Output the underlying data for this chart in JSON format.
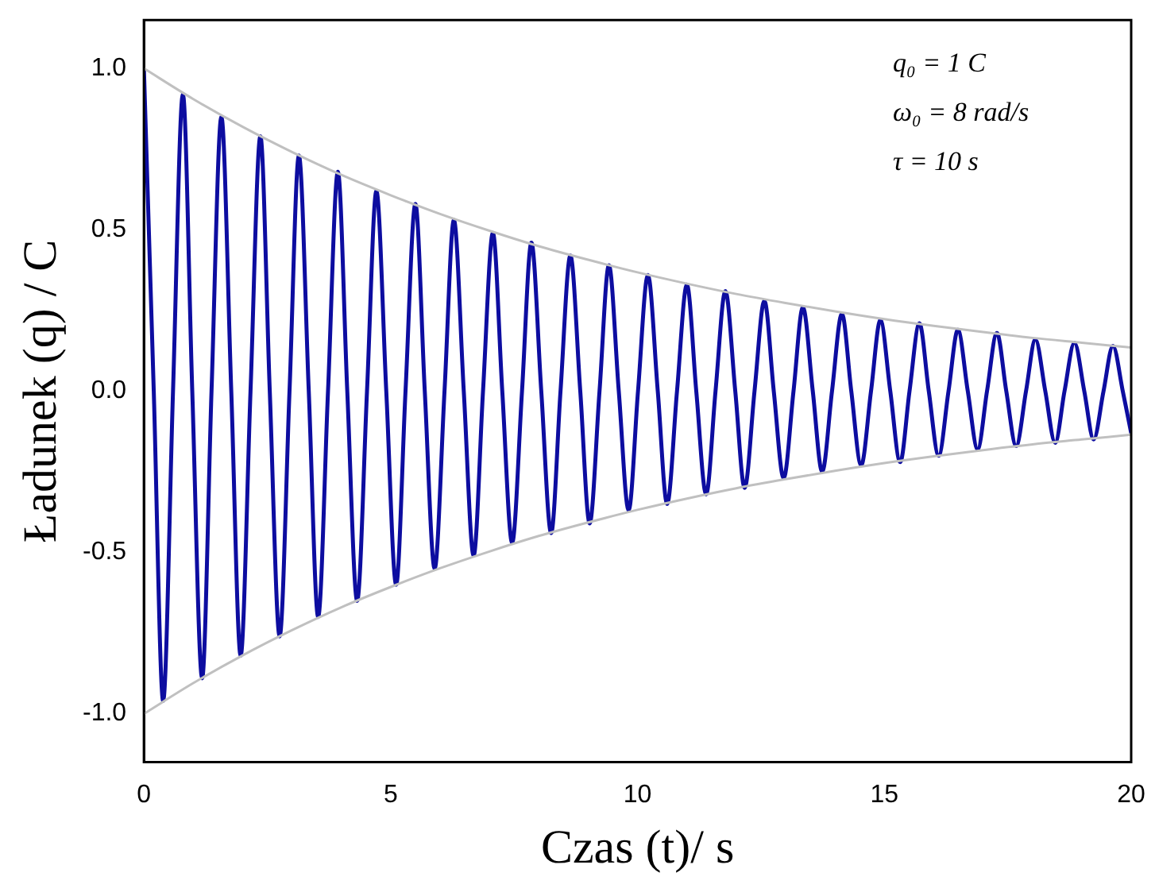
{
  "chart_data": {
    "type": "line",
    "xlabel": "Czas (t)/ s",
    "ylabel": "Ładunek (q) / C",
    "xlim": [
      0,
      20
    ],
    "xticks": [
      0,
      5,
      10,
      15,
      20
    ],
    "ylim": [
      -1.15,
      1.15
    ],
    "yticks": [
      {
        "value": -1,
        "label": "-1.0"
      },
      {
        "value": -0.5,
        "label": "-0.5"
      },
      {
        "value": 0,
        "label": "0.0"
      },
      {
        "value": 0.5,
        "label": "0.5"
      },
      {
        "value": 1,
        "label": "1.0"
      }
    ],
    "grid": false,
    "legend": false,
    "marker": "none",
    "line_style": "solid",
    "annotations": [
      "q₀ = 1 C",
      "ω₀ = 8 rad/s",
      "τ = 10 s"
    ],
    "series": [
      {
        "color": "#c0c0c0",
        "x": [
          0,
          1,
          2,
          3,
          4,
          5,
          6,
          7,
          8,
          9,
          10,
          11,
          12,
          13,
          14,
          15,
          16,
          17,
          18,
          19,
          20
        ],
        "values": [
          1,
          0.905,
          0.819,
          0.741,
          0.67,
          0.607,
          0.549,
          0.497,
          0.449,
          0.407,
          0.368,
          0.333,
          0.301,
          0.273,
          0.247,
          0.223,
          0.202,
          0.183,
          0.165,
          0.15,
          0.135
        ]
      },
      {
        "color": "#c0c0c0",
        "x": [
          0,
          1,
          2,
          3,
          4,
          5,
          6,
          7,
          8,
          9,
          10,
          11,
          12,
          13,
          14,
          15,
          16,
          17,
          18,
          19,
          20
        ],
        "values": [
          -1,
          -0.905,
          -0.819,
          -0.741,
          -0.67,
          -0.607,
          -0.549,
          -0.497,
          -0.449,
          -0.407,
          -0.368,
          -0.333,
          -0.301,
          -0.273,
          -0.247,
          -0.223,
          -0.202,
          -0.183,
          -0.165,
          -0.15,
          -0.135
        ]
      },
      {
        "color": "#0d0da0",
        "x": [
          0,
          0.2,
          0.39,
          0.59,
          0.79,
          0.98,
          1.18,
          1.37,
          1.57,
          1.77,
          1.96,
          2.16,
          2.36,
          2.55,
          2.75,
          2.95,
          3.14,
          3.34,
          3.53,
          3.73,
          3.93,
          4.12,
          4.32,
          4.52,
          4.71,
          4.91,
          5.11,
          5.3,
          5.5,
          5.69,
          5.89,
          6.09,
          6.28,
          6.48,
          6.68,
          6.87,
          7.07,
          7.26,
          7.46,
          7.66,
          7.85,
          8.05,
          8.25,
          8.44,
          8.64,
          8.84,
          9.03,
          9.23,
          9.42,
          9.62,
          9.82,
          10.01,
          10.21,
          10.41,
          10.6,
          10.8,
          11.0,
          11.19,
          11.39,
          11.58,
          11.78,
          11.98,
          12.17,
          12.37,
          12.57,
          12.76,
          12.96,
          13.16,
          13.35,
          13.55,
          13.74,
          13.94,
          14.14,
          14.33,
          14.53,
          14.73,
          14.92,
          15.12,
          15.32,
          15.51,
          15.71,
          15.9,
          16.1,
          16.3,
          16.49,
          16.69,
          16.89,
          17.08,
          17.28,
          17.47,
          17.67,
          17.87,
          18.06,
          18.26,
          18.46,
          18.65,
          18.85,
          19.05,
          19.24,
          19.44,
          19.63,
          19.83,
          20
        ],
        "values": [
          1,
          0,
          -0.96,
          0,
          0.92,
          0,
          -0.89,
          0,
          0.85,
          0,
          -0.82,
          0,
          0.79,
          0,
          -0.76,
          0,
          0.73,
          0,
          -0.7,
          0,
          0.68,
          0,
          -0.65,
          0,
          0.62,
          0,
          -0.6,
          0,
          0.58,
          0,
          -0.55,
          0,
          0.53,
          0,
          -0.51,
          0,
          0.49,
          0,
          -0.47,
          0,
          0.46,
          0,
          -0.44,
          0,
          0.42,
          0,
          -0.41,
          0,
          0.39,
          0,
          -0.37,
          0,
          0.36,
          0,
          -0.35,
          0,
          0.33,
          0,
          -0.32,
          0,
          0.31,
          0,
          -0.3,
          0,
          0.28,
          0,
          -0.27,
          0,
          0.26,
          0,
          -0.25,
          0,
          0.24,
          0,
          -0.23,
          0,
          0.22,
          0,
          -0.22,
          0,
          0.21,
          0,
          -0.2,
          0,
          0.19,
          0,
          -0.18,
          0,
          0.18,
          0,
          -0.17,
          0,
          0.16,
          0,
          -0.16,
          0,
          0.15,
          0,
          -0.15,
          0,
          0.14,
          0,
          -0.13
        ]
      }
    ]
  }
}
